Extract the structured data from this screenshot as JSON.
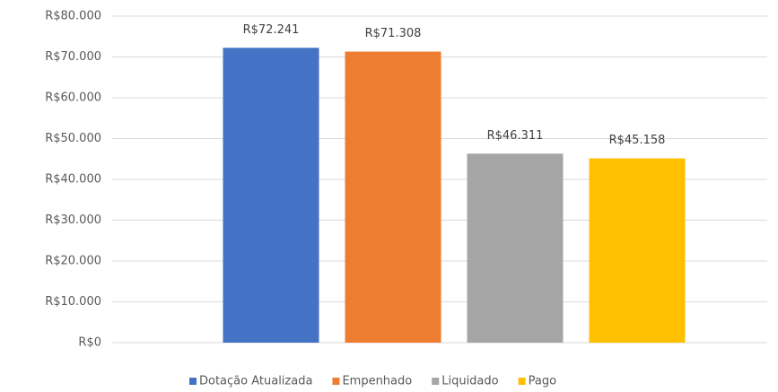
{
  "chart_data": {
    "type": "bar",
    "categories": [
      null
    ],
    "series": [
      {
        "name": "Dotação Atualizada",
        "color": "#4472c4",
        "values": [
          72241
        ],
        "value_labels": [
          "R$72.241"
        ]
      },
      {
        "name": "Empenhado",
        "color": "#ed7d31",
        "values": [
          71308
        ],
        "value_labels": [
          "R$71.308"
        ]
      },
      {
        "name": "Liquidado",
        "color": "#a5a5a5",
        "values": [
          46311
        ],
        "value_labels": [
          "R$46.311"
        ]
      },
      {
        "name": "Pago",
        "color": "#ffc000",
        "values": [
          45158
        ],
        "value_labels": [
          "R$45.158"
        ]
      }
    ],
    "ylim": [
      0,
      80000
    ],
    "yticks": [
      {
        "value": 0,
        "label": "R$0"
      },
      {
        "value": 10000,
        "label": "R$10.000"
      },
      {
        "value": 20000,
        "label": "R$20.000"
      },
      {
        "value": 30000,
        "label": "R$30.000"
      },
      {
        "value": 40000,
        "label": "R$40.000"
      },
      {
        "value": 50000,
        "label": "R$50.000"
      },
      {
        "value": 60000,
        "label": "R$60.000"
      },
      {
        "value": 70000,
        "label": "R$70.000"
      },
      {
        "value": 80000,
        "label": "R$80.000"
      }
    ],
    "grid": true,
    "legend": "bottom"
  }
}
